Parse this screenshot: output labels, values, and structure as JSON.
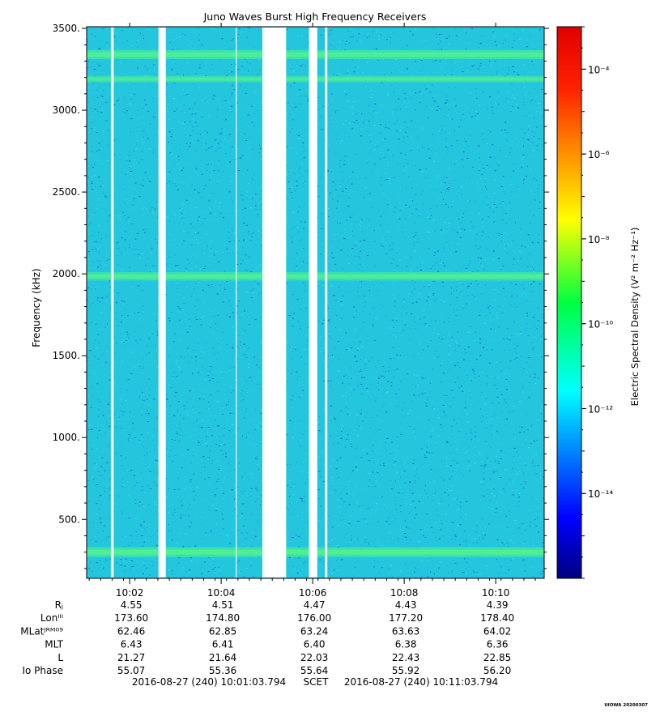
{
  "chart_data": {
    "type": "heatmap",
    "title": "Juno Waves Burst High Frequency Receivers",
    "ylabel": "Frequency (kHz)",
    "ylim": [
      140,
      3510
    ],
    "yticks": [
      {
        "value": 500,
        "label": "500."
      },
      {
        "value": 1000,
        "label": "1000."
      },
      {
        "value": 1500,
        "label": "1500."
      },
      {
        "value": 2000,
        "label": "2000."
      },
      {
        "value": 2500,
        "label": "2500."
      },
      {
        "value": 3000,
        "label": "3000."
      },
      {
        "value": 3500,
        "label": "3500."
      }
    ],
    "xlim_minutes": [
      0,
      10
    ],
    "xticks": [
      {
        "minute": 0.94,
        "label": "10:02"
      },
      {
        "minute": 2.94,
        "label": "10:04"
      },
      {
        "minute": 4.94,
        "label": "10:06"
      },
      {
        "minute": 6.94,
        "label": "10:08"
      },
      {
        "minute": 8.94,
        "label": "10:10"
      }
    ],
    "data_gaps_minutes": [
      [
        0.53,
        0.59
      ],
      [
        1.57,
        1.73
      ],
      [
        3.26,
        3.28
      ],
      [
        3.84,
        4.36
      ],
      [
        4.86,
        5.04
      ],
      [
        5.21,
        5.26
      ]
    ],
    "emission_bands_khz": [
      {
        "center": 300,
        "strength": 1.0
      },
      {
        "center": 1985,
        "strength": 0.8
      },
      {
        "center": 3190,
        "strength": 0.5
      },
      {
        "center": 3340,
        "strength": 0.9
      }
    ],
    "background_level_exp": -12,
    "colorbar": {
      "label": "Electric Spectral Density (V² m⁻² Hz⁻¹)",
      "range_exp": [
        -16,
        -3
      ],
      "ticks": [
        {
          "exp": -14,
          "label": "10⁻¹⁴"
        },
        {
          "exp": -12,
          "label": "10⁻¹²"
        },
        {
          "exp": -10,
          "label": "10⁻¹⁰"
        },
        {
          "exp": -8,
          "label": "10⁻⁸"
        },
        {
          "exp": -6,
          "label": "10⁻⁶"
        },
        {
          "exp": -4,
          "label": "10⁻⁴"
        }
      ]
    },
    "ephemeris": {
      "labels": [
        "Rⱼ",
        "Lonᴵᴵᴵ",
        "MLatᴶᴿᴹ⁰⁹",
        "MLT",
        "L",
        "Io Phase"
      ],
      "rows": [
        [
          "4.55",
          "4.51",
          "4.47",
          "4.43",
          "4.39"
        ],
        [
          "173.60",
          "174.80",
          "176.00",
          "177.20",
          "178.40"
        ],
        [
          "62.46",
          "62.85",
          "63.24",
          "63.63",
          "64.02"
        ],
        [
          "6.43",
          "6.41",
          "6.40",
          "6.38",
          "6.36"
        ],
        [
          "21.27",
          "21.64",
          "22.03",
          "22.43",
          "22.85"
        ],
        [
          "55.07",
          "55.36",
          "55.64",
          "55.92",
          "56.20"
        ]
      ]
    },
    "time_range": {
      "start": "2016-08-27 (240) 10:01:03.794",
      "mid": "SCET",
      "end": "2016-08-27 (240) 10:11:03.794"
    },
    "credit": "UIOWA 20200307"
  }
}
